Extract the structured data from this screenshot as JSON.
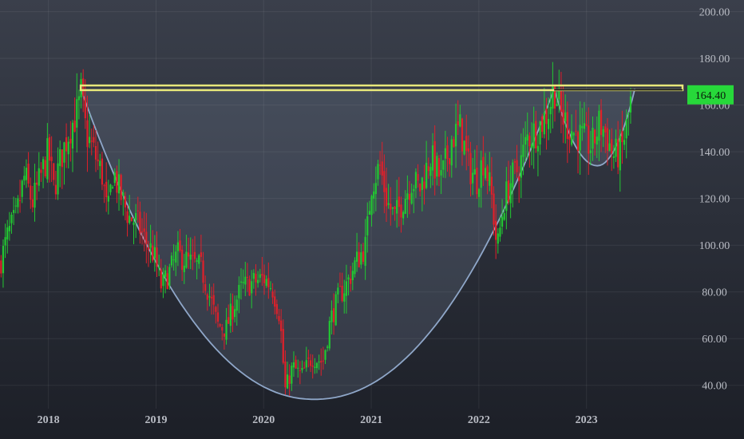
{
  "chart_data": {
    "type": "candlestick",
    "title": "",
    "xlabel": "",
    "ylabel": "",
    "ylim": [
      30,
      205
    ],
    "xlim": [
      2017.55,
      2023.9
    ],
    "y_ticks": [
      40,
      60,
      80,
      100,
      120,
      140,
      160,
      180,
      200
    ],
    "y_tick_labels": [
      "40.00",
      "60.00",
      "80.00",
      "100.00",
      "120.00",
      "140.00",
      "160.00",
      "180.00",
      "200.00"
    ],
    "x_ticks": [
      2018,
      2019,
      2020,
      2021,
      2022,
      2023
    ],
    "x_tick_labels": [
      "2018",
      "2019",
      "2020",
      "2021",
      "2022",
      "2023"
    ],
    "last_price": 164.4,
    "last_price_label": "164.40",
    "grid": true,
    "colors": {
      "background_top": "#3a3f4b",
      "background_bottom": "#1c1f27",
      "up": "#22c832",
      "down": "#e0202a",
      "resistance": "#e8e87a",
      "cup": "#8fa7c9",
      "price_label_bg": "#27d83a"
    },
    "price_path": [
      [
        2017.55,
        92
      ],
      [
        2017.62,
        104
      ],
      [
        2017.7,
        112
      ],
      [
        2017.78,
        130
      ],
      [
        2017.85,
        118
      ],
      [
        2017.92,
        128
      ],
      [
        2018.0,
        140
      ],
      [
        2018.05,
        124
      ],
      [
        2018.12,
        138
      ],
      [
        2018.2,
        150
      ],
      [
        2018.28,
        158
      ],
      [
        2018.3,
        166
      ],
      [
        2018.35,
        148
      ],
      [
        2018.42,
        140
      ],
      [
        2018.5,
        130
      ],
      [
        2018.55,
        112
      ],
      [
        2018.6,
        132
      ],
      [
        2018.68,
        120
      ],
      [
        2018.75,
        112
      ],
      [
        2018.82,
        110
      ],
      [
        2018.9,
        102
      ],
      [
        2018.98,
        96
      ],
      [
        2019.05,
        82
      ],
      [
        2019.12,
        88
      ],
      [
        2019.2,
        96
      ],
      [
        2019.3,
        93
      ],
      [
        2019.42,
        90
      ],
      [
        2019.5,
        78
      ],
      [
        2019.57,
        66
      ],
      [
        2019.65,
        64
      ],
      [
        2019.72,
        74
      ],
      [
        2019.8,
        82
      ],
      [
        2019.9,
        84
      ],
      [
        2020.0,
        86
      ],
      [
        2020.08,
        82
      ],
      [
        2020.15,
        70
      ],
      [
        2020.2,
        38
      ],
      [
        2020.27,
        48
      ],
      [
        2020.35,
        44
      ],
      [
        2020.45,
        52
      ],
      [
        2020.55,
        50
      ],
      [
        2020.62,
        68
      ],
      [
        2020.7,
        78
      ],
      [
        2020.78,
        84
      ],
      [
        2020.85,
        92
      ],
      [
        2020.95,
        100
      ],
      [
        2021.0,
        126
      ],
      [
        2021.08,
        134
      ],
      [
        2021.15,
        118
      ],
      [
        2021.22,
        112
      ],
      [
        2021.3,
        120
      ],
      [
        2021.38,
        128
      ],
      [
        2021.45,
        124
      ],
      [
        2021.55,
        138
      ],
      [
        2021.65,
        128
      ],
      [
        2021.75,
        146
      ],
      [
        2021.83,
        150
      ],
      [
        2021.9,
        134
      ],
      [
        2021.98,
        128
      ],
      [
        2022.05,
        138
      ],
      [
        2022.12,
        120
      ],
      [
        2022.17,
        98
      ],
      [
        2022.23,
        118
      ],
      [
        2022.3,
        128
      ],
      [
        2022.38,
        134
      ],
      [
        2022.45,
        146
      ],
      [
        2022.55,
        150
      ],
      [
        2022.65,
        158
      ],
      [
        2022.7,
        168
      ],
      [
        2022.76,
        156
      ],
      [
        2022.85,
        150
      ],
      [
        2022.95,
        146
      ],
      [
        2023.05,
        142
      ],
      [
        2023.12,
        152
      ],
      [
        2023.18,
        148
      ],
      [
        2023.25,
        138
      ],
      [
        2023.32,
        140
      ],
      [
        2023.38,
        152
      ],
      [
        2023.42,
        164
      ]
    ]
  }
}
